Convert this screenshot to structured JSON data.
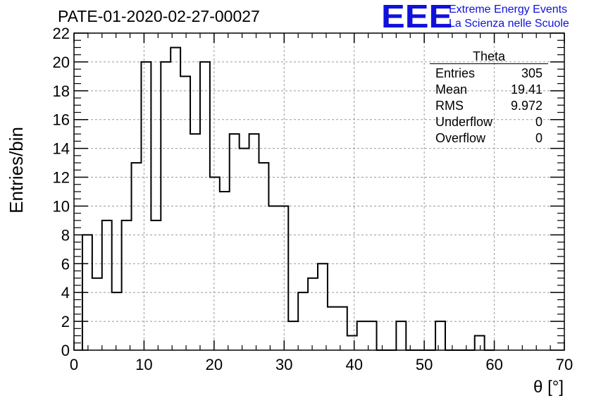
{
  "title": "PATE-01-2020-02-27-00027",
  "logo": {
    "mark": "EEE",
    "line1": "Extreme Energy Events",
    "line2": "La Scienza nelle Scuole",
    "color": "#1010dd"
  },
  "stats_box": {
    "name": "Theta",
    "rows": [
      {
        "label": "Entries",
        "value": "305"
      },
      {
        "label": "Mean",
        "value": "19.41"
      },
      {
        "label": "RMS",
        "value": "9.972"
      },
      {
        "label": "Underflow",
        "value": "0"
      },
      {
        "label": "Overflow",
        "value": "0"
      }
    ]
  },
  "chart_data": {
    "type": "bar",
    "title": "PATE-01-2020-02-27-00027",
    "xlabel": "θ [°]",
    "ylabel": "Entries/bin",
    "xlim": [
      0,
      70
    ],
    "ylim": [
      0,
      22
    ],
    "xticks": [
      0,
      10,
      20,
      30,
      40,
      50,
      60,
      70
    ],
    "yticks": [
      0,
      2,
      4,
      6,
      8,
      10,
      12,
      14,
      16,
      18,
      20,
      22
    ],
    "grid": true,
    "bin_width": 1.4,
    "first_bin_start": 1.2,
    "values": [
      8,
      5,
      9,
      4,
      9,
      13,
      20,
      9,
      20,
      21,
      19,
      15,
      20,
      12,
      11,
      15,
      14,
      15,
      13,
      10,
      10,
      2,
      4,
      5,
      6,
      3,
      3,
      1,
      2,
      2,
      0,
      0,
      2,
      0,
      0,
      0,
      2,
      0,
      0,
      0,
      1,
      0
    ]
  }
}
